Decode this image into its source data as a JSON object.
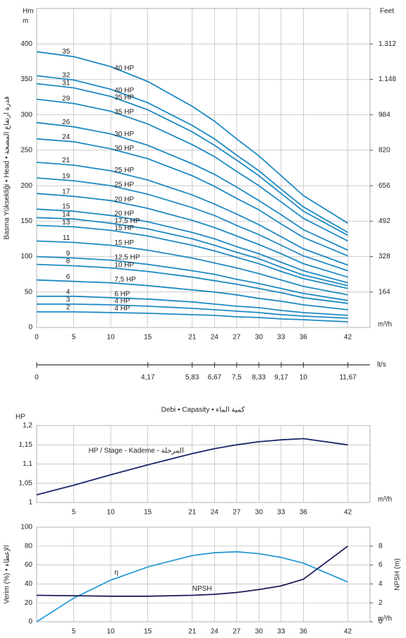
{
  "chart_data": [
    {
      "type": "line",
      "y_label": "Basma Yüksekliği • Head • قدرة ارتفاع المضخة",
      "y_unit": [
        "Hm",
        "m"
      ],
      "y2_unit": "Feet",
      "x_unit": "m³/h",
      "x": [
        0,
        5,
        10,
        15,
        21,
        24,
        27,
        30,
        33,
        36,
        42
      ],
      "xticks": [
        0,
        5,
        10,
        15,
        21,
        24,
        27,
        30,
        33,
        36,
        42
      ],
      "xlim": [
        0,
        45
      ],
      "ylim": [
        0,
        450
      ],
      "yticks": [
        0,
        50,
        100,
        150,
        200,
        250,
        300,
        350,
        400
      ],
      "y2lim": [
        0,
        1476
      ],
      "y2ticks": [
        164,
        328,
        492,
        656,
        820,
        984,
        {
          "value": 1148,
          "label": "1.148"
        },
        {
          "value": 1312,
          "label": "1.312"
        }
      ],
      "grid": true,
      "series": [
        {
          "name": "35",
          "power": "40 HP",
          "color": "#1f8ac3",
          "values": [
            389,
            382,
            368,
            347,
            312,
            291,
            266,
            242,
            214,
            186,
            147
          ]
        },
        {
          "name": "32",
          "power": "40 HP",
          "color": "#1f8ac3",
          "values": [
            355,
            349,
            336,
            317,
            285,
            266,
            243,
            221,
            195,
            170,
            134
          ]
        },
        {
          "name": "31",
          "power": "35 HP",
          "color": "#1f8ac3",
          "values": [
            344,
            338,
            326,
            307,
            276,
            257,
            236,
            214,
            189,
            164,
            130
          ]
        },
        {
          "name": "29",
          "power": "35 HP",
          "color": "#1f8ac3",
          "values": [
            322,
            316,
            305,
            287,
            258,
            241,
            220,
            200,
            177,
            154,
            122
          ]
        },
        {
          "name": "26",
          "power": "30 HP",
          "color": "#1f8ac3",
          "values": [
            289,
            283,
            273,
            257,
            231,
            216,
            198,
            179,
            159,
            138,
            109
          ]
        },
        {
          "name": "24",
          "power": "30 HP",
          "color": "#1f8ac3",
          "values": [
            266,
            262,
            252,
            238,
            214,
            199,
            182,
            166,
            146,
            127,
            101
          ]
        },
        {
          "name": "21",
          "power": "25 HP",
          "color": "#1f8ac3",
          "values": [
            233,
            229,
            221,
            208,
            187,
            174,
            160,
            145,
            128,
            111,
            88
          ]
        },
        {
          "name": "19",
          "power": "25 HP",
          "color": "#1f8ac3",
          "values": [
            211,
            207,
            200,
            188,
            169,
            158,
            144,
            131,
            116,
            101,
            80
          ]
        },
        {
          "name": "17",
          "power": "20 HP",
          "color": "#1f8ac3",
          "values": [
            189,
            185,
            179,
            168,
            151,
            141,
            129,
            117,
            104,
            90,
            71
          ]
        },
        {
          "name": "15",
          "power": "20 HP",
          "color": "#1f8ac3",
          "values": [
            167,
            164,
            158,
            149,
            134,
            125,
            114,
            104,
            92,
            80,
            63
          ]
        },
        {
          "name": "14",
          "power": "17,5 HP",
          "color": "#1f8ac3",
          "values": [
            155,
            153,
            147,
            139,
            125,
            116,
            106,
            97,
            85,
            74,
            59
          ]
        },
        {
          "name": "13",
          "power": "15 HP",
          "color": "#1f8ac3",
          "values": [
            144,
            142,
            137,
            129,
            116,
            108,
            99,
            90,
            79,
            69,
            55
          ]
        },
        {
          "name": "11",
          "power": "15 HP",
          "color": "#1f8ac3",
          "values": [
            122,
            120,
            116,
            109,
            98,
            91,
            84,
            76,
            67,
            58,
            46
          ]
        },
        {
          "name": "9",
          "power": "12,5 HP",
          "color": "#1f8ac3",
          "values": [
            100,
            98,
            95,
            89,
            80,
            75,
            68,
            62,
            55,
            48,
            38
          ]
        },
        {
          "name": "8",
          "power": "10 HP",
          "color": "#1f8ac3",
          "values": [
            89,
            87,
            84,
            79,
            71,
            66,
            61,
            55,
            49,
            42,
            34
          ]
        },
        {
          "name": "6",
          "power": "7,5 HP",
          "color": "#1f8ac3",
          "values": [
            67,
            65,
            63,
            59,
            53,
            50,
            46,
            41,
            37,
            32,
            25
          ]
        },
        {
          "name": "4",
          "power": "6 HP",
          "color": "#1f8ac3",
          "values": [
            44,
            44,
            42,
            40,
            36,
            33,
            30,
            28,
            24,
            21,
            17
          ]
        },
        {
          "name": "3",
          "power": "4 HP",
          "color": "#1f8ac3",
          "values": [
            33,
            33,
            32,
            30,
            27,
            25,
            23,
            21,
            18,
            16,
            13
          ]
        },
        {
          "name": "2",
          "power": "4 HP",
          "color": "#1f8ac3",
          "values": [
            22,
            22,
            21,
            20,
            18,
            17,
            15,
            14,
            12,
            11,
            8
          ]
        }
      ]
    },
    {
      "type": "axis",
      "x_unit": "lt/s",
      "xlim": [
        0,
        12.5
      ],
      "xticks": [
        0,
        {
          "value": 4.17,
          "label": "4,17"
        },
        {
          "value": 5.83,
          "label": "5,83"
        },
        {
          "value": 6.67,
          "label": "6,67"
        },
        {
          "value": 7.5,
          "label": "7,5"
        },
        {
          "value": 8.33,
          "label": "8,33"
        },
        {
          "value": 9.17,
          "label": "9,17"
        },
        10,
        {
          "value": 11.67,
          "label": "11,67"
        }
      ]
    },
    {
      "type": "line",
      "title": "Debi • Capasity • كمية الماء",
      "y_label": "HP",
      "annotation": "HP / Stage - Kademe - المرحلة",
      "x_unit": "m³/h",
      "x": [
        0,
        5,
        10,
        15,
        21,
        24,
        27,
        30,
        33,
        36,
        42
      ],
      "xticks": [
        5,
        10,
        15,
        21,
        24,
        27,
        30,
        33,
        36,
        42
      ],
      "xlim": [
        0,
        45
      ],
      "ylim": [
        1,
        1.2
      ],
      "yticks": [
        1,
        {
          "value": 1.05,
          "label": "1,05"
        },
        {
          "value": 1.1,
          "label": "1,1"
        },
        {
          "value": 1.15,
          "label": "1,15"
        },
        {
          "value": 1.2,
          "label": "1,2"
        }
      ],
      "grid": true,
      "series": [
        {
          "color": "#1b2668",
          "values": [
            1.02,
            1.045,
            1.072,
            1.098,
            1.127,
            1.14,
            1.15,
            1.158,
            1.163,
            1.166,
            1.15
          ]
        }
      ]
    },
    {
      "type": "line",
      "y_label": "Verim (%) • الإعطاء",
      "y2_label": "NPSH (m)",
      "x_unit": "m³/h",
      "x": [
        0,
        5,
        10,
        15,
        21,
        24,
        27,
        30,
        33,
        36,
        42
      ],
      "xticks": [
        5,
        10,
        15,
        21,
        24,
        27,
        30,
        33,
        36,
        42
      ],
      "xlim": [
        0,
        45
      ],
      "ylim": [
        0,
        100
      ],
      "yticks": [
        0,
        20,
        40,
        60,
        80,
        100
      ],
      "y2lim": [
        0,
        10
      ],
      "y2ticks": [
        0,
        2,
        4,
        6,
        8
      ],
      "grid": true,
      "series": [
        {
          "name": "η",
          "color": "#2a9bd4",
          "values": [
            0,
            25,
            44,
            58,
            70,
            73,
            74,
            72,
            68,
            62,
            42
          ]
        },
        {
          "name": "NPSH",
          "color": "#1b1c5a",
          "axis": "y2",
          "values": [
            2.8,
            2.75,
            2.7,
            2.7,
            2.8,
            2.9,
            3.1,
            3.4,
            3.8,
            4.5,
            8
          ]
        }
      ]
    }
  ]
}
